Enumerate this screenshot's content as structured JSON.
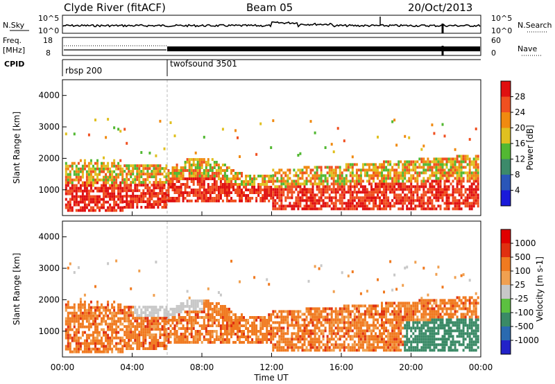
{
  "header": {
    "station": "Clyde River (fitACF)",
    "beam": "Beam 05",
    "date": "20/Oct/2013"
  },
  "panels": {
    "nsky_label": "N.Sky",
    "nsky_scale_top": "10^5",
    "nsky_scale_bottom": "10^0",
    "nsearch_label": "N.Search",
    "nsearch_scale_top": "10^5",
    "nsearch_scale_bottom": "10^0",
    "freq_label": "Freq.",
    "freq_unit": "[MHz]",
    "freq_top": "18",
    "freq_bottom": "8",
    "nave_label": "Nave",
    "nave_top": "60",
    "nave_bottom": "0",
    "cpid_label": "CPID",
    "cpid_1": "rbsp 200",
    "cpid_2": "twofsound 3501"
  },
  "chart_data": [
    {
      "type": "heatmap",
      "title": "Power",
      "ylabel": "Slant Range [km]",
      "xlabel": "Time UT",
      "x_ticks": [
        "00:00",
        "04:00",
        "08:00",
        "12:00",
        "16:00",
        "20:00",
        "00:00"
      ],
      "y_ticks": [
        1000,
        2000,
        3000,
        4000
      ],
      "ylim": [
        180,
        4500
      ],
      "colorbar_label": "Power [dB]",
      "colorbar_ticks": [
        "4",
        "8",
        "12",
        "16",
        "20",
        "24",
        "28"
      ],
      "colorbar_colors": [
        "#1a1ad9",
        "#2a56b8",
        "#3c8a6a",
        "#52b832",
        "#e0c020",
        "#f08a10",
        "#f05020",
        "#e01010"
      ]
    },
    {
      "type": "heatmap",
      "title": "Velocity",
      "ylabel": "Slant Range [km]",
      "xlabel": "Time UT",
      "x_ticks": [
        "00:00",
        "04:00",
        "08:00",
        "12:00",
        "16:00",
        "20:00",
        "00:00"
      ],
      "y_ticks": [
        1000,
        2000,
        3000,
        4000
      ],
      "ylim": [
        180,
        4500
      ],
      "colorbar_label": "Velocity [m s-1]",
      "colorbar_ticks": [
        "1000",
        "500",
        "100",
        "25",
        "-25",
        "-100",
        "-500",
        "-1000"
      ],
      "colorbar_colors": [
        "#2222c8",
        "#2a6ab0",
        "#3a8a66",
        "#5cc040",
        "#c8c8c8",
        "#f0a050",
        "#f07a20",
        "#e03010",
        "#e00000"
      ]
    }
  ],
  "xaxis_title": "Time UT"
}
